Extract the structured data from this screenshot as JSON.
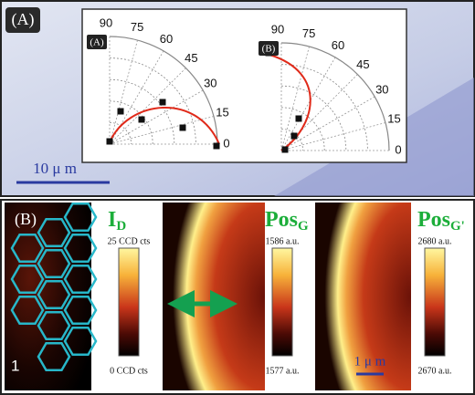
{
  "panel_a": {
    "label": "(A)",
    "scale_bar": "10 μ m",
    "polar_plots": [
      {
        "label": "(A)",
        "angle_labels": [
          "90",
          "75",
          "60",
          "45",
          "30",
          "15",
          "0"
        ]
      },
      {
        "label": "(B)",
        "angle_labels": [
          "90",
          "75",
          "60",
          "45",
          "30",
          "15",
          "0"
        ]
      }
    ]
  },
  "panel_b": {
    "label": "(B)",
    "maps": [
      {
        "title": "I",
        "title_sub": "D",
        "top_label": "25 CCD cts",
        "bottom_label": "0 CCD cts"
      },
      {
        "title": "Pos",
        "title_sub": "G",
        "top_label": "1586 a.u.",
        "bottom_label": "1577 a.u."
      },
      {
        "title": "Pos",
        "title_sub": "G'",
        "top_label": "2680 a.u.",
        "bottom_label": "2670 a.u."
      }
    ],
    "marker": "1",
    "scale_bar": "1 μ m"
  }
}
